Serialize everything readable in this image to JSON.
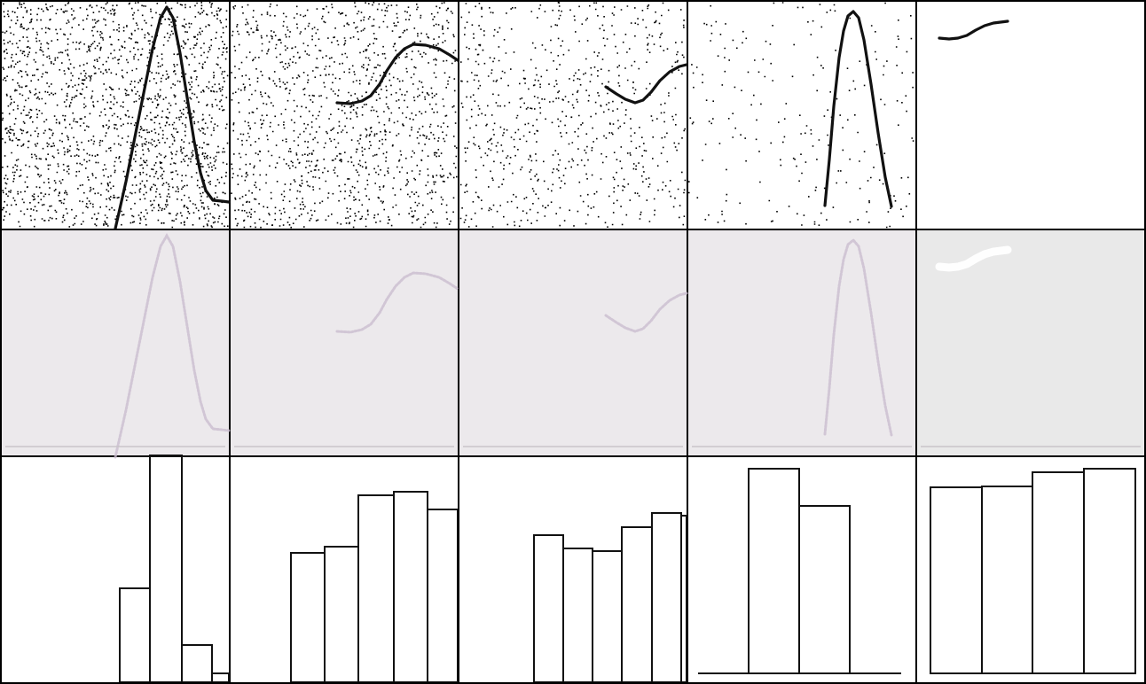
{
  "panels": [
    {
      "column": 1,
      "row1_curve": [
        [
          130,
          258
        ],
        [
          142,
          205
        ],
        [
          153,
          150
        ],
        [
          163,
          100
        ],
        [
          172,
          55
        ],
        [
          181,
          20
        ],
        [
          188,
          8
        ],
        [
          195,
          20
        ],
        [
          203,
          60
        ],
        [
          211,
          110
        ],
        [
          219,
          160
        ],
        [
          226,
          195
        ],
        [
          232,
          215
        ],
        [
          240,
          226
        ],
        [
          250,
          227
        ],
        [
          258,
          228
        ]
      ],
      "row1_density": 0.55,
      "row3_bars": [
        {
          "x0": 135,
          "x1": 169,
          "top": 664
        },
        {
          "x0": 169,
          "x1": 205,
          "top": 514
        },
        {
          "x0": 205,
          "x1": 239,
          "top": 728
        },
        {
          "x0": 239,
          "x1": 258,
          "top": 760
        }
      ]
    },
    {
      "column": 2,
      "row1_curve": [
        [
          380,
          116
        ],
        [
          395,
          117
        ],
        [
          408,
          114
        ],
        [
          418,
          108
        ],
        [
          428,
          95
        ],
        [
          436,
          80
        ],
        [
          446,
          65
        ],
        [
          456,
          55
        ],
        [
          466,
          50
        ],
        [
          480,
          51
        ],
        [
          495,
          55
        ],
        [
          507,
          62
        ],
        [
          516,
          68
        ]
      ],
      "row1_density": 0.38,
      "row3_bars": [
        {
          "x0": 328,
          "x1": 366,
          "top": 624
        },
        {
          "x0": 366,
          "x1": 404,
          "top": 617
        },
        {
          "x0": 404,
          "x1": 444,
          "top": 559
        },
        {
          "x0": 444,
          "x1": 482,
          "top": 555
        },
        {
          "x0": 482,
          "x1": 516,
          "top": 575
        }
      ]
    },
    {
      "column": 3,
      "row1_curve": [
        [
          683,
          98
        ],
        [
          695,
          106
        ],
        [
          705,
          112
        ],
        [
          716,
          116
        ],
        [
          725,
          113
        ],
        [
          734,
          104
        ],
        [
          744,
          91
        ],
        [
          755,
          81
        ],
        [
          766,
          75
        ],
        [
          774,
          73
        ]
      ],
      "row1_density": 0.22,
      "row3_bars": [
        {
          "x0": 602,
          "x1": 635,
          "top": 604
        },
        {
          "x0": 635,
          "x1": 668,
          "top": 619
        },
        {
          "x0": 668,
          "x1": 701,
          "top": 622
        },
        {
          "x0": 701,
          "x1": 735,
          "top": 595
        },
        {
          "x0": 735,
          "x1": 768,
          "top": 579
        },
        {
          "x0": 768,
          "x1": 774,
          "top": 582
        }
      ]
    },
    {
      "column": 4,
      "row1_curve": [
        [
          930,
          232
        ],
        [
          935,
          180
        ],
        [
          940,
          120
        ],
        [
          946,
          65
        ],
        [
          951,
          35
        ],
        [
          956,
          18
        ],
        [
          962,
          13
        ],
        [
          968,
          20
        ],
        [
          974,
          45
        ],
        [
          982,
          95
        ],
        [
          990,
          150
        ],
        [
          998,
          200
        ],
        [
          1005,
          233
        ]
      ],
      "row1_density": 0.07,
      "row3_baseline": {
        "x0": 787,
        "x1": 1016,
        "y": 760
      },
      "row3_bars": [
        {
          "x0": 844,
          "x1": 901,
          "top": 529
        },
        {
          "x0": 901,
          "x1": 958,
          "top": 571
        }
      ]
    },
    {
      "column": 5,
      "row1_curve": [
        [
          1059,
          43
        ],
        [
          1070,
          44
        ],
        [
          1080,
          43
        ],
        [
          1090,
          40
        ],
        [
          1100,
          34
        ],
        [
          1110,
          29
        ],
        [
          1120,
          26
        ],
        [
          1136,
          24
        ]
      ],
      "row1_density": 0.0,
      "row3_bars": [
        {
          "x0": 1049,
          "x1": 1107,
          "top": 550
        },
        {
          "x0": 1107,
          "x1": 1164,
          "top": 549
        },
        {
          "x0": 1164,
          "x1": 1222,
          "top": 533
        },
        {
          "x0": 1222,
          "x1": 1280,
          "top": 529
        }
      ]
    }
  ],
  "colors": {
    "ink": "#111111",
    "row2_fill": "#ece9ec",
    "row2_fill_last": "#e9e9e9",
    "row2_ghost": "#cbbdd0",
    "row2_highlight": "#ffffff"
  }
}
